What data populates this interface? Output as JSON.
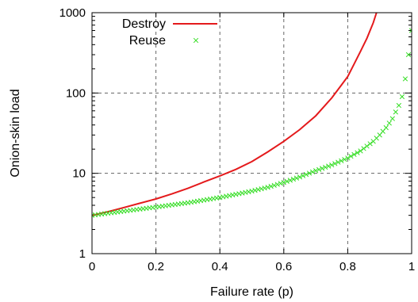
{
  "chart_data": {
    "type": "line",
    "xlabel": "Failure rate (p)",
    "ylabel": "Onion-skin load",
    "xlim": [
      0,
      1
    ],
    "ylim": [
      1,
      1000
    ],
    "yscale": "log",
    "x_ticks": [
      0,
      0.2,
      0.4,
      0.6,
      0.8,
      1
    ],
    "x_tick_labels": [
      "0",
      "0.2",
      "0.4",
      "0.6",
      "0.8",
      "1"
    ],
    "y_ticks": [
      1,
      10,
      100,
      1000
    ],
    "y_tick_labels": [
      "1",
      "10",
      "100",
      "1000"
    ],
    "grid": true,
    "legend_position": "top-left",
    "series": [
      {
        "name": "Destroy",
        "style": "line",
        "color": "#e41a1c",
        "x": [
          0,
          0.05,
          0.1,
          0.15,
          0.2,
          0.25,
          0.3,
          0.35,
          0.4,
          0.45,
          0.5,
          0.55,
          0.6,
          0.65,
          0.7,
          0.75,
          0.78,
          0.8,
          0.82,
          0.84,
          0.86,
          0.88,
          0.89
        ],
        "y": [
          3,
          3.33,
          3.75,
          4.24,
          4.8,
          5.55,
          6.5,
          7.8,
          9.3,
          11.2,
          14,
          18.5,
          25,
          35,
          52,
          87,
          125,
          160,
          230,
          330,
          480,
          750,
          1000
        ]
      },
      {
        "name": "Reuse",
        "style": "points",
        "marker": "x",
        "color": "#33dd22",
        "x": [
          0,
          0.1,
          0.2,
          0.3,
          0.4,
          0.5,
          0.55,
          0.6,
          0.65,
          0.7,
          0.75,
          0.8,
          0.84,
          0.88,
          0.9,
          0.92,
          0.94,
          0.96,
          0.97,
          0.98,
          0.99,
          1.0
        ],
        "y": [
          3,
          3.38,
          3.8,
          4.3,
          5.0,
          6.0,
          6.7,
          7.7,
          9.0,
          10.8,
          12.7,
          15.5,
          19.0,
          25,
          30,
          37,
          48,
          70,
          90,
          150,
          300,
          600
        ]
      }
    ]
  }
}
